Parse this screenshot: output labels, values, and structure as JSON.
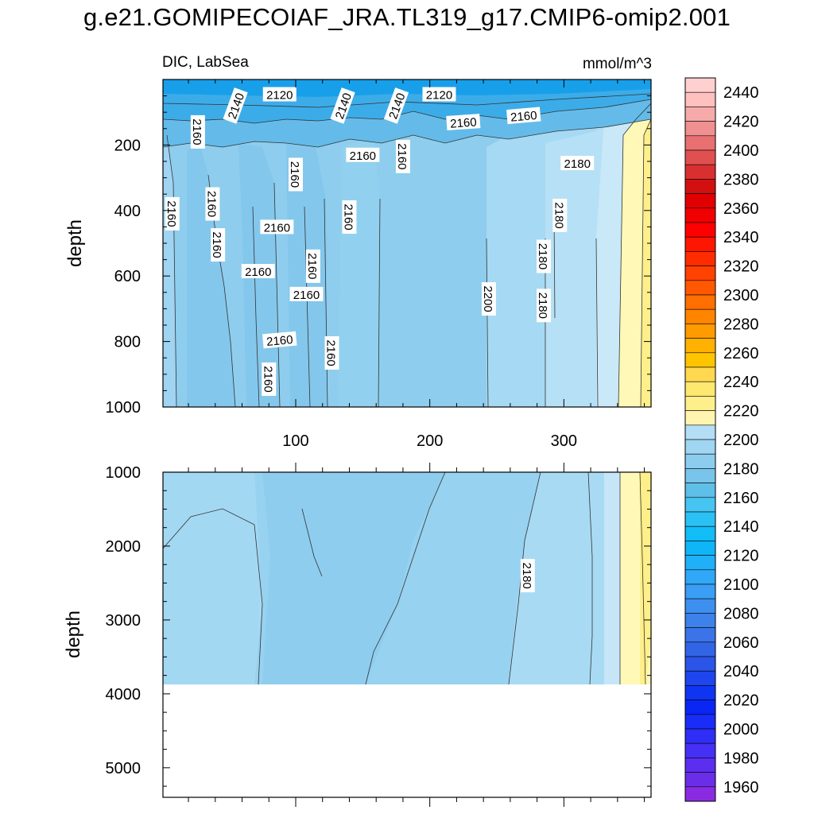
{
  "chart_data": {
    "type": "heatmap",
    "title": "g.e21.GOMIPECOIAF_JRA.TL319_g17.CMIP6-omip2.001",
    "subtitle_left": "DIC, LabSea",
    "subtitle_right": "mmol/m^3",
    "ylabel": "depth",
    "upper_panel": {
      "xlim": [
        1,
        365
      ],
      "ylim": [
        1000,
        0
      ],
      "x_ticks": [
        100,
        200,
        300
      ],
      "y_ticks": [
        200,
        400,
        600,
        800,
        1000
      ],
      "bands": [
        {
          "x": [
            1,
            345
          ],
          "value": 2170
        },
        {
          "x": [
            345,
            365
          ],
          "value": 2190
        },
        {
          "x": [
            340,
            370
          ],
          "value": 2210
        }
      ],
      "contour_labels": [
        {
          "text": "2120",
          "x": 88,
          "depth": 45
        },
        {
          "text": "2140",
          "x": 55,
          "depth": 80
        },
        {
          "text": "2140",
          "x": 135,
          "depth": 80
        },
        {
          "text": "2140",
          "x": 175,
          "depth": 80
        },
        {
          "text": "2120",
          "x": 207,
          "depth": 45
        },
        {
          "text": "2160",
          "x": 27,
          "depth": 160
        },
        {
          "text": "2160",
          "x": 225,
          "depth": 130
        },
        {
          "text": "2160",
          "x": 270,
          "depth": 110
        },
        {
          "text": "2160",
          "x": 150,
          "depth": 230
        },
        {
          "text": "2160",
          "x": 180,
          "depth": 235
        },
        {
          "text": "2160",
          "x": 100,
          "depth": 290
        },
        {
          "text": "2180",
          "x": 310,
          "depth": 255
        },
        {
          "text": "2160",
          "x": 8,
          "depth": 410
        },
        {
          "text": "2160",
          "x": 38,
          "depth": 380
        },
        {
          "text": "2160",
          "x": 42,
          "depth": 505
        },
        {
          "text": "2160",
          "x": 140,
          "depth": 420
        },
        {
          "text": "2160",
          "x": 86,
          "depth": 450
        },
        {
          "text": "2180",
          "x": 297,
          "depth": 415
        },
        {
          "text": "2180",
          "x": 285,
          "depth": 540
        },
        {
          "text": "2160",
          "x": 113,
          "depth": 570
        },
        {
          "text": "2160",
          "x": 72,
          "depth": 585
        },
        {
          "text": "2160",
          "x": 108,
          "depth": 655
        },
        {
          "text": "2180",
          "x": 285,
          "depth": 690
        },
        {
          "text": "2200",
          "x": 244,
          "depth": 670
        },
        {
          "text": "2160",
          "x": 88,
          "depth": 795
        },
        {
          "text": "2160",
          "x": 127,
          "depth": 835
        },
        {
          "text": "2160",
          "x": 80,
          "depth": 915
        }
      ]
    },
    "lower_panel": {
      "xlim": [
        1,
        365
      ],
      "ylim": [
        5400,
        1000
      ],
      "y_ticks": [
        1000,
        2000,
        3000,
        4000,
        5000
      ],
      "data_bottom_depth": 3870,
      "contour_labels": [
        {
          "text": "2180",
          "x": 273,
          "depth": 2400
        }
      ]
    },
    "colorbar": {
      "min": 1950,
      "max": 2450,
      "step": 10,
      "labels": [
        "2440",
        "2420",
        "2400",
        "2380",
        "2360",
        "2340",
        "2320",
        "2300",
        "2280",
        "2260",
        "2240",
        "2220",
        "2200",
        "2180",
        "2160",
        "2140",
        "2120",
        "2100",
        "2080",
        "2060",
        "2040",
        "2020",
        "2000",
        "1980",
        "1960"
      ],
      "colors": [
        "#8a2be2",
        "#6a2ee8",
        "#5b2ef0",
        "#4730f5",
        "#2f2ef7",
        "#1a2cf7",
        "#0a26f5",
        "#1035f2",
        "#1e45ee",
        "#2a55e8",
        "#3265e6",
        "#3a74e8",
        "#3d82ea",
        "#3d90ef",
        "#3a9ef4",
        "#30a8f7",
        "#1fb0f8",
        "#0eb6f8",
        "#12bcf7",
        "#2cc1f5",
        "#46c4f2",
        "#5ebfe8",
        "#78c4ea",
        "#8ccdee",
        "#a0d6f2",
        "#b4def5",
        "#fff5b0",
        "#ffef8a",
        "#ffe870",
        "#ffd850",
        "#ffc400",
        "#ffb000",
        "#ff9a00",
        "#ff8400",
        "#ff6e00",
        "#ff5800",
        "#ff4200",
        "#ff2c00",
        "#ff1600",
        "#ff0000",
        "#f00000",
        "#e00000",
        "#d21010",
        "#d83030",
        "#e05050",
        "#e87070",
        "#f09090",
        "#f7aaaa",
        "#ffc0c0",
        "#ffd0d0"
      ]
    }
  }
}
